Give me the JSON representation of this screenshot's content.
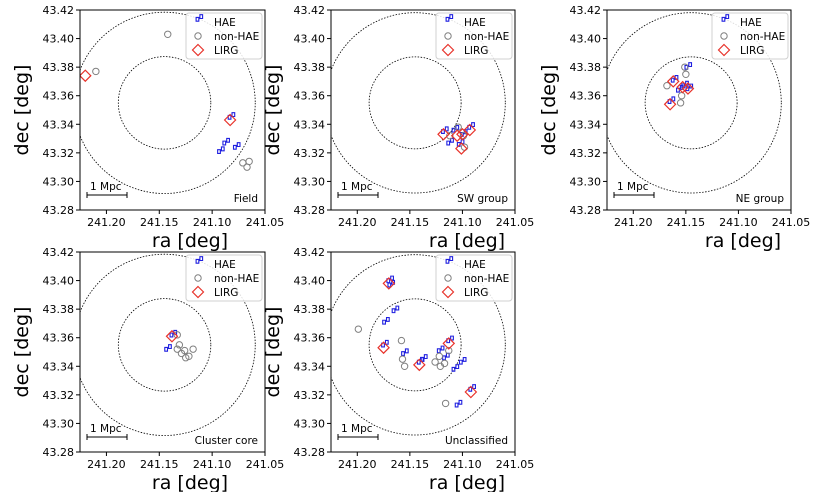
{
  "chart_data": [
    {
      "type": "scatter",
      "panel_label": "Field",
      "xlabel": "ra [deg]",
      "ylabel": "dec [deg]",
      "xlim": [
        241.225,
        241.05
      ],
      "ylim": [
        43.28,
        43.42
      ],
      "xticks": [
        "241.20",
        "241.15",
        "241.10",
        "241.05"
      ],
      "yticks": [
        "43.28",
        "43.30",
        "43.32",
        "43.34",
        "43.36",
        "43.38",
        "43.40",
        "43.42"
      ],
      "legend": {
        "location": "upper right",
        "entries": [
          "HAE",
          "non-HAE",
          "LIRG"
        ]
      },
      "scale_bar_label": "1 Mpc",
      "series": [
        {
          "name": "HAE",
          "points": [
            [
              241.083,
              43.343
            ],
            [
              241.093,
              43.319
            ],
            [
              241.088,
              43.325
            ],
            [
              241.078,
              43.322
            ]
          ]
        },
        {
          "name": "non-HAE",
          "points": [
            [
              241.142,
              43.403
            ],
            [
              241.21,
              43.377
            ],
            [
              241.065,
              43.314
            ],
            [
              241.071,
              43.313
            ],
            [
              241.067,
              43.31
            ]
          ]
        },
        {
          "name": "LIRG",
          "points": [
            [
              241.083,
              43.343
            ],
            [
              241.22,
              43.374
            ]
          ]
        }
      ]
    },
    {
      "type": "scatter",
      "panel_label": "SW group",
      "xlabel": "ra [deg]",
      "ylabel": "dec [deg]",
      "xlim": [
        241.225,
        241.05
      ],
      "ylim": [
        43.28,
        43.42
      ],
      "xticks": [
        "241.20",
        "241.15",
        "241.10",
        "241.05"
      ],
      "yticks": [
        "43.28",
        "43.30",
        "43.32",
        "43.34",
        "43.36",
        "43.38",
        "43.40",
        "43.42"
      ],
      "legend": {
        "location": "upper right",
        "entries": [
          "HAE",
          "non-HAE",
          "LIRG"
        ]
      },
      "scale_bar_label": "1 Mpc",
      "series": [
        {
          "name": "HAE",
          "points": [
            [
              241.118,
              43.333
            ],
            [
              241.108,
              43.334
            ],
            [
              241.1,
              43.331
            ],
            [
              241.113,
              43.325
            ],
            [
              241.103,
              43.324
            ],
            [
              241.093,
              43.336
            ]
          ]
        },
        {
          "name": "non-HAE",
          "points": [
            [
              241.104,
              43.338
            ],
            [
              241.112,
              43.332
            ],
            [
              241.099,
              43.332
            ],
            [
              241.098,
              43.324
            ]
          ]
        },
        {
          "name": "LIRG",
          "points": [
            [
              241.118,
              43.333
            ],
            [
              241.105,
              43.332
            ],
            [
              241.1,
              43.333
            ],
            [
              241.101,
              43.323
            ],
            [
              241.093,
              43.336
            ]
          ]
        }
      ]
    },
    {
      "type": "scatter",
      "panel_label": "NE group",
      "xlabel": "ra [deg]",
      "ylabel": "dec [deg]",
      "xlim": [
        241.225,
        241.05
      ],
      "ylim": [
        43.28,
        43.42
      ],
      "xticks": [
        "241.20",
        "241.15",
        "241.10",
        "241.05"
      ],
      "yticks": [
        "43.28",
        "43.30",
        "43.32",
        "43.34",
        "43.36",
        "43.38",
        "43.40",
        "43.42"
      ],
      "legend": {
        "location": "upper right",
        "entries": [
          "HAE",
          "non-HAE",
          "LIRG"
        ]
      },
      "scale_bar_label": "1 Mpc",
      "series": [
        {
          "name": "HAE",
          "points": [
            [
              241.149,
              43.378
            ],
            [
              241.162,
              43.369
            ],
            [
              241.152,
              43.365
            ],
            [
              241.157,
              43.362
            ],
            [
              241.148,
              43.363
            ],
            [
              241.165,
              43.354
            ]
          ]
        },
        {
          "name": "non-HAE",
          "points": [
            [
              241.151,
              43.38
            ],
            [
              241.168,
              43.367
            ],
            [
              241.154,
              43.36
            ],
            [
              241.155,
              43.355
            ],
            [
              241.15,
              43.375
            ]
          ]
        },
        {
          "name": "LIRG",
          "points": [
            [
              241.162,
              43.37
            ],
            [
              241.153,
              43.366
            ],
            [
              241.148,
              43.365
            ],
            [
              241.165,
              43.354
            ]
          ]
        }
      ]
    },
    {
      "type": "scatter",
      "panel_label": "Cluster core",
      "xlabel": "ra [deg]",
      "ylabel": "dec [deg]",
      "xlim": [
        241.225,
        241.05
      ],
      "ylim": [
        43.28,
        43.42
      ],
      "xticks": [
        "241.20",
        "241.15",
        "241.10",
        "241.05"
      ],
      "yticks": [
        "43.28",
        "43.30",
        "43.32",
        "43.34",
        "43.36",
        "43.38",
        "43.40",
        "43.42"
      ],
      "legend": {
        "location": "upper right",
        "entries": [
          "HAE",
          "non-HAE",
          "LIRG"
        ]
      },
      "scale_bar_label": "1 Mpc",
      "series": [
        {
          "name": "HAE",
          "points": [
            [
              241.138,
              43.36
            ],
            [
              241.143,
              43.35
            ]
          ]
        },
        {
          "name": "non-HAE",
          "points": [
            [
              241.133,
              43.362
            ],
            [
              241.131,
              43.355
            ],
            [
              241.129,
              43.349
            ],
            [
              241.126,
              43.351
            ],
            [
              241.122,
              43.347
            ],
            [
              241.118,
              43.352
            ],
            [
              241.133,
              43.352
            ],
            [
              241.125,
              43.346
            ]
          ]
        },
        {
          "name": "LIRG",
          "points": [
            [
              241.138,
              43.361
            ]
          ]
        }
      ]
    },
    {
      "type": "scatter",
      "panel_label": "Unclassified",
      "xlabel": "ra [deg]",
      "ylabel": "dec [deg]",
      "xlim": [
        241.225,
        241.05
      ],
      "ylim": [
        43.28,
        43.42
      ],
      "xticks": [
        "241.20",
        "241.15",
        "241.10",
        "241.05"
      ],
      "yticks": [
        "43.28",
        "43.30",
        "43.32",
        "43.34",
        "43.36",
        "43.38",
        "43.40",
        "43.42"
      ],
      "legend": {
        "location": "upper right",
        "entries": [
          "HAE",
          "non-HAE",
          "LIRG"
        ]
      },
      "scale_bar_label": "1 Mpc",
      "series": [
        {
          "name": "HAE",
          "points": [
            [
              241.17,
              43.398
            ],
            [
              241.169,
              43.395
            ],
            [
              241.165,
              43.377
            ],
            [
              241.174,
              43.369
            ],
            [
              241.175,
              43.353
            ],
            [
              241.156,
              43.347
            ],
            [
              241.141,
              43.341
            ],
            [
              241.138,
              43.343
            ],
            [
              241.122,
              43.349
            ],
            [
              241.117,
              43.344
            ],
            [
              241.113,
              43.356
            ],
            [
              241.108,
              43.336
            ],
            [
              241.101,
              43.341
            ],
            [
              241.092,
              43.322
            ],
            [
              241.105,
              43.311
            ]
          ]
        },
        {
          "name": "non-HAE",
          "points": [
            [
              241.199,
              43.366
            ],
            [
              241.158,
              43.358
            ],
            [
              241.157,
              43.345
            ],
            [
              241.155,
              43.34
            ],
            [
              241.121,
              43.34
            ],
            [
              241.122,
              43.347
            ],
            [
              241.117,
              43.342
            ],
            [
              241.113,
              43.351
            ],
            [
              241.116,
              43.314
            ],
            [
              241.126,
              43.343
            ]
          ]
        },
        {
          "name": "LIRG",
          "points": [
            [
              241.17,
              43.398
            ],
            [
              241.175,
              43.353
            ],
            [
              241.141,
              43.341
            ],
            [
              241.113,
              43.356
            ],
            [
              241.092,
              43.322
            ]
          ]
        }
      ]
    }
  ]
}
